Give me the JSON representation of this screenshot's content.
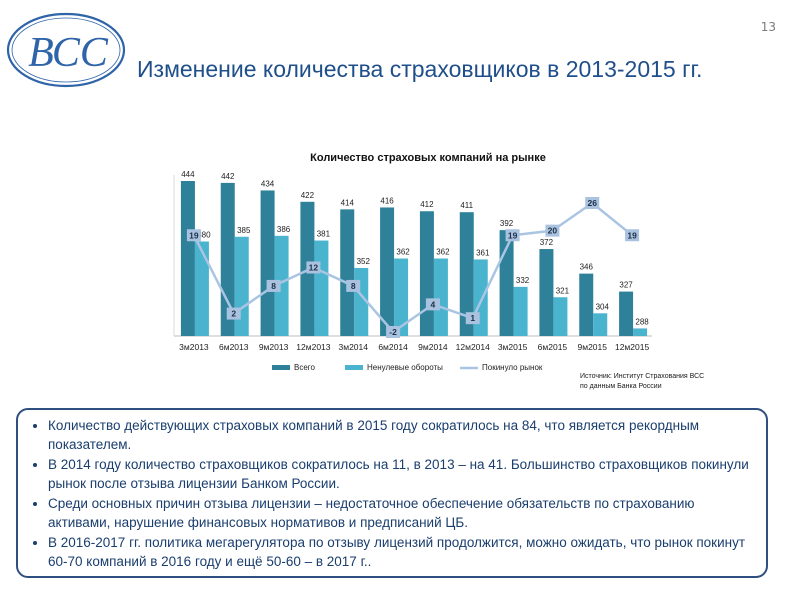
{
  "logo": {
    "text": "ВСС"
  },
  "page_number": "13",
  "slide_title": "Изменение количества страховщиков в 2013-2015 гг.",
  "source": {
    "line1": "Источник: Институт Страхования ВСС",
    "line2": "по данным Банка России"
  },
  "bullets": [
    "Количество действующих страховых компаний в 2015 году сократилось на 84, что является рекордным показателем.",
    "В 2014 году количество страховщиков сократилось на 11, в 2013 – на 41. Большинство страховщиков покинули рынок после отзыва лицензии Банком России.",
    "Среди основных причин отзыва лицензии – недостаточное обеспечение обязательств по страхованию активами, нарушение финансовых нормативов и предписаний ЦБ.",
    "В 2016-2017 гг. политика мегарегулятора по отзыву лицензий продолжится, можно ожидать, что рынок покинут 60-70 компаний в 2016 году и ещё 50-60 – в 2017 г.."
  ],
  "colors": {
    "bar_total": "#2e8199",
    "bar_nonzero": "#4ab3cd",
    "line_left": "#aac5e3",
    "title_blue": "#1f4f8a",
    "box_border": "#2e4f80",
    "label_box": "#a9c2e0"
  },
  "chart_data": {
    "type": "bar",
    "title": "Количество страховых компаний на рынке",
    "categories": [
      "3м2013",
      "6м2013",
      "9м2013",
      "12м2013",
      "3м2014",
      "6м2014",
      "9м2014",
      "12м2014",
      "3м2015",
      "6м2015",
      "9м2015",
      "12м2015"
    ],
    "series": [
      {
        "name": "Всего",
        "type": "bar",
        "axis": "left",
        "values": [
          444,
          442,
          434,
          422,
          414,
          416,
          412,
          411,
          392,
          372,
          346,
          327
        ]
      },
      {
        "name": "Ненулевые обороты",
        "type": "bar",
        "axis": "left",
        "values": [
          380,
          385,
          386,
          381,
          352,
          362,
          362,
          361,
          332,
          321,
          304,
          288
        ]
      },
      {
        "name": "Покинуло рынок",
        "type": "line",
        "axis": "secondary",
        "values": [
          19,
          2,
          8,
          12,
          8,
          -2,
          4,
          1,
          19,
          20,
          26,
          19
        ]
      }
    ],
    "legend_position": "bottom",
    "grid": false
  }
}
